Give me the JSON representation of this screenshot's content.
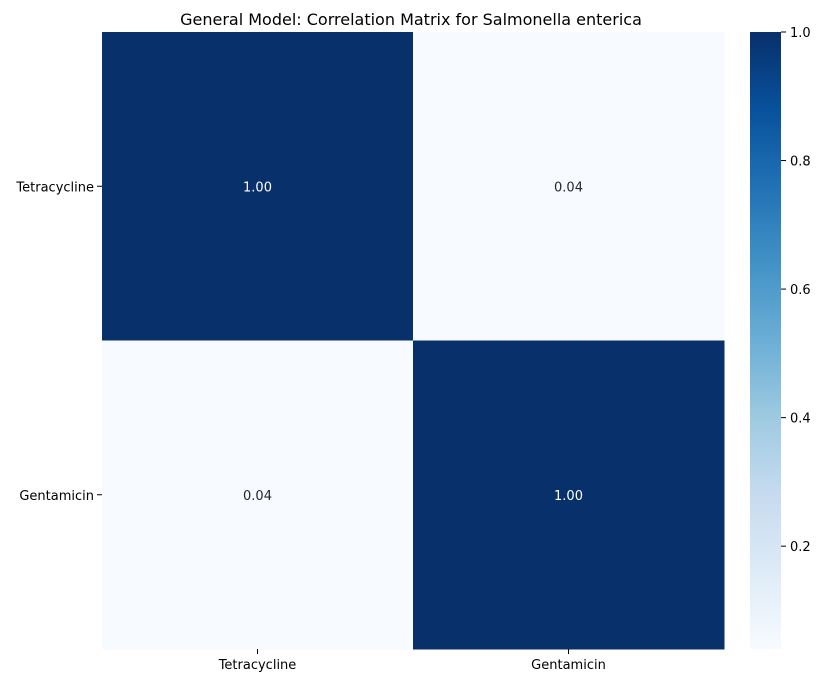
{
  "chart_data": {
    "type": "heatmap",
    "title": "General Model: Correlation Matrix for Salmonella enterica",
    "x_labels": [
      "Tetracycline",
      "Gentamicin"
    ],
    "y_labels": [
      "Tetracycline",
      "Gentamicin"
    ],
    "values": [
      [
        1.0,
        0.04
      ],
      [
        0.04,
        1.0
      ]
    ],
    "annotations": [
      [
        "1.00",
        "0.04"
      ],
      [
        "0.04",
        "1.00"
      ]
    ],
    "colormap": "Blues",
    "colorbar": {
      "min": 0.04,
      "max": 1.0,
      "ticks": [
        0.2,
        0.4,
        0.6,
        0.8,
        1.0
      ],
      "tick_labels": [
        "0.2",
        "0.4",
        "0.6",
        "0.8",
        "1.0"
      ]
    }
  }
}
